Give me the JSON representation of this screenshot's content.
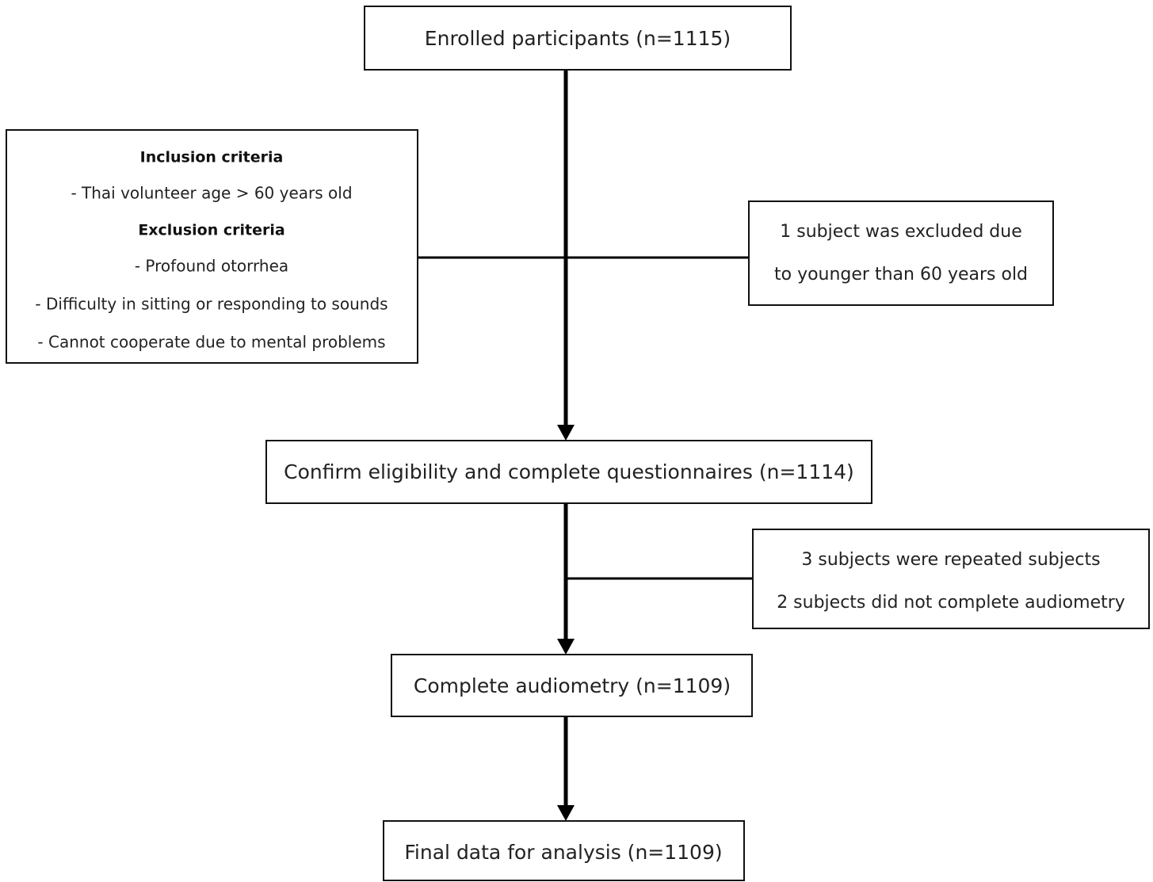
{
  "boxes": [
    {
      "lines": [
        "Enrolled participants (n=1115)"
      ]
    },
    {
      "lines": [
        "Inclusion criteria",
        "- Thai volunteer age > 60 years old",
        "Exclusion criteria",
        "- Profound otorrhea",
        "- Difficulty in sitting or responding to sounds",
        "- Cannot cooperate due to mental problems"
      ]
    },
    {
      "lines": [
        "1 subject was excluded due",
        "to younger than 60 years old"
      ]
    },
    {
      "lines": [
        "Confirm eligibility and complete questionnaires (n=1114)"
      ]
    },
    {
      "lines": [
        "3 subjects were repeated subjects",
        "2 subjects did not complete audiometry"
      ]
    },
    {
      "lines": [
        "Complete audiometry (n=1109)"
      ]
    },
    {
      "lines": [
        "Final data for analysis (n=1109)"
      ]
    }
  ]
}
